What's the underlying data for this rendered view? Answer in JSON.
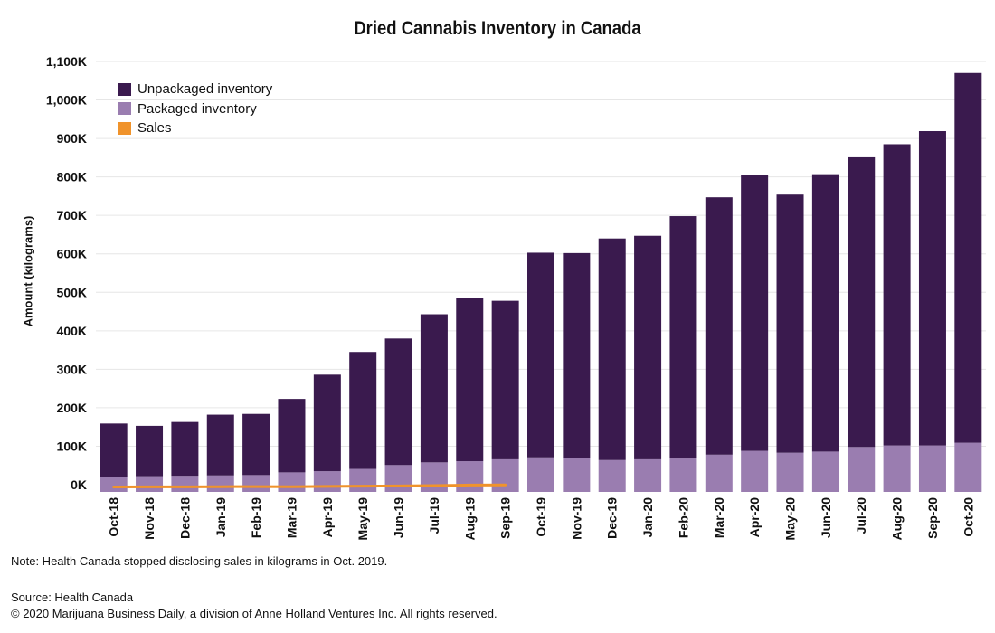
{
  "chart_data": {
    "type": "bar",
    "stacked": true,
    "title": "Dried Cannabis Inventory in Canada",
    "ylabel": "Amount (kilograms)",
    "xlabel": "",
    "ylim": [
      0,
      1100000
    ],
    "yticks": [
      0,
      100000,
      200000,
      300000,
      400000,
      500000,
      600000,
      700000,
      800000,
      900000,
      1000000,
      1100000
    ],
    "ytick_labels": [
      "0K",
      "100K",
      "200K",
      "300K",
      "400K",
      "500K",
      "600K",
      "700K",
      "800K",
      "900K",
      "1,000K",
      "1,100K"
    ],
    "grid": true,
    "legend_position": "top-left",
    "categories": [
      "Oct-18",
      "Nov-18",
      "Dec-18",
      "Jan-19",
      "Feb-19",
      "Mar-19",
      "Apr-19",
      "May-19",
      "Jun-19",
      "Jul-19",
      "Aug-19",
      "Sep-19",
      "Oct-19",
      "Nov-19",
      "Dec-19",
      "Jan-20",
      "Feb-20",
      "Mar-20",
      "Apr-20",
      "May-20",
      "Jun-20",
      "Jul-20",
      "Aug-20",
      "Sep-20",
      "Oct-20"
    ],
    "series": [
      {
        "name": "Packaged inventory",
        "color": "#9a7db0",
        "values": [
          20000,
          22000,
          23000,
          24000,
          25000,
          32000,
          35000,
          41000,
          51000,
          58000,
          61000,
          66000,
          71000,
          69000,
          64000,
          66000,
          68000,
          78000,
          88000,
          83000,
          86000,
          98000,
          102000,
          102000,
          109000
        ]
      },
      {
        "name": "Unpackaged inventory",
        "color": "#3a1a4e",
        "values": [
          139000,
          131000,
          140000,
          158000,
          159000,
          191000,
          251000,
          304000,
          329000,
          385000,
          424000,
          412000,
          532000,
          533000,
          576000,
          581000,
          630000,
          669000,
          716000,
          671000,
          721000,
          753000,
          783000,
          817000,
          961000
        ]
      }
    ],
    "line_series": {
      "name": "Sales",
      "color": "#f0932b",
      "values": [
        10000,
        11000,
        11000,
        12000,
        13000,
        12000,
        14000,
        16000,
        18000,
        20000,
        24000,
        25000
      ]
    }
  },
  "note": "Note: Health Canada stopped disclosing sales in kilograms in Oct. 2019.",
  "source": "Source: Health Canada",
  "copyright": "© 2020 Marijuana Business Daily, a division of Anne Holland Ventures Inc. All rights reserved."
}
